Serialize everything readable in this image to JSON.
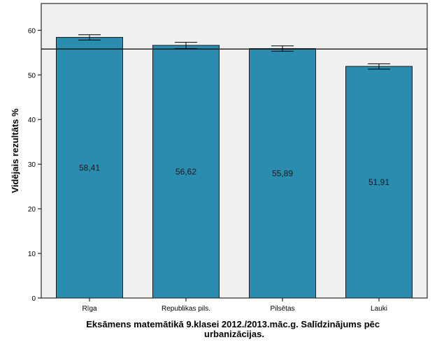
{
  "chart_data": {
    "type": "bar",
    "xlabel_lines": [
      "Eksāmens matemātikā 9.klasei 2012./2013.māc.g. Salīdzinājums pēc",
      "urbanizācijas."
    ],
    "ylabel": "Vidējais rezultāts %",
    "categories": [
      "Rīga",
      "Republikas pils.",
      "Pilsētas",
      "Lauki"
    ],
    "values": [
      58.41,
      56.62,
      55.89,
      51.91
    ],
    "value_labels": [
      "58,41",
      "56,62",
      "55,89",
      "51,91"
    ],
    "error_bars": [
      {
        "low": 57.8,
        "high": 59.0
      },
      {
        "low": 55.9,
        "high": 57.3
      },
      {
        "low": 55.3,
        "high": 56.5
      },
      {
        "low": 51.3,
        "high": 52.5
      }
    ],
    "reference_line": 55.8,
    "ylim": [
      0,
      66
    ],
    "yticks": [
      0,
      10,
      20,
      30,
      40,
      50,
      60
    ],
    "colors": {
      "bar": "#2a8db0",
      "bar_edge": "#1a1a1a",
      "plot_bg": "#f0f0f0"
    },
    "grid": false,
    "legend": "none"
  }
}
